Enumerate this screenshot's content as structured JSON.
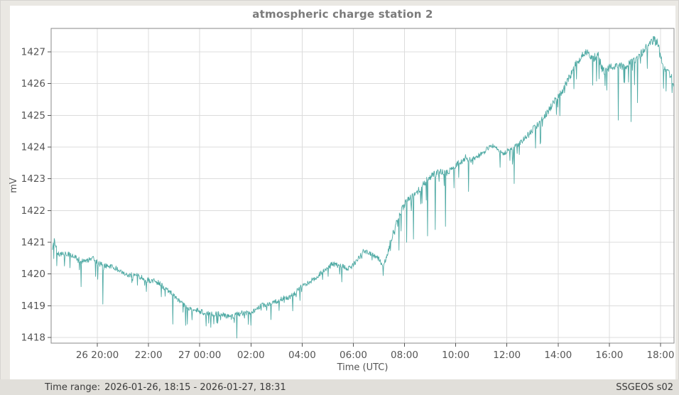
{
  "page": {
    "background": "#eae8e3",
    "panel_background": "#ffffff"
  },
  "footer": {
    "time_range_label": "Time range:",
    "time_range_value": "2026-01-26, 18:15 - 2026-01-27, 18:31",
    "source": "SSGEOS s02"
  },
  "chart_data": {
    "type": "line",
    "title": "atmospheric charge station 2",
    "xlabel": "Time (UTC)",
    "ylabel": "mV",
    "legend": "none",
    "grid": true,
    "line_color": "#4faaa4",
    "grid_color": "#dcdcdc",
    "axis_color": "#8a8a8a",
    "tick_color": "#555555",
    "tick_text_color": "#555555",
    "x_domain_hours": [
      -5.803,
      18.527
    ],
    "y_domain": [
      1417.82,
      1427.74
    ],
    "x_ticks": [
      {
        "t": -4,
        "label": "26 20:00"
      },
      {
        "t": -2,
        "label": "22:00"
      },
      {
        "t": 0,
        "label": "27 00:00"
      },
      {
        "t": 2,
        "label": "02:00"
      },
      {
        "t": 4,
        "label": "04:00"
      },
      {
        "t": 6,
        "label": "06:00"
      },
      {
        "t": 8,
        "label": "08:00"
      },
      {
        "t": 10,
        "label": "10:00"
      },
      {
        "t": 12,
        "label": "12:00"
      },
      {
        "t": 14,
        "label": "14:00"
      },
      {
        "t": 16,
        "label": "16:00"
      },
      {
        "t": 18,
        "label": "18:00"
      }
    ],
    "y_ticks": [
      1418,
      1419,
      1420,
      1421,
      1422,
      1423,
      1424,
      1425,
      1426,
      1427
    ],
    "series_start_hour": -5.75,
    "series_end_hour": 18.517,
    "samples_per_hour": 60,
    "series_anchors": [
      [
        -5.75,
        1420.75
      ],
      [
        -5.68,
        1421.0
      ],
      [
        -5.55,
        1420.6
      ],
      [
        -5.2,
        1420.62
      ],
      [
        -4.9,
        1420.55
      ],
      [
        -4.55,
        1420.45
      ],
      [
        -4.2,
        1420.5
      ],
      [
        -4.0,
        1420.33
      ],
      [
        -3.6,
        1420.22
      ],
      [
        -3.2,
        1420.1
      ],
      [
        -2.8,
        1420.0
      ],
      [
        -2.4,
        1419.97
      ],
      [
        -2.0,
        1419.82
      ],
      [
        -1.6,
        1419.65
      ],
      [
        -1.2,
        1419.45
      ],
      [
        -0.8,
        1419.15
      ],
      [
        -0.4,
        1418.95
      ],
      [
        0.0,
        1418.8
      ],
      [
        0.4,
        1418.72
      ],
      [
        0.9,
        1418.68
      ],
      [
        1.4,
        1418.73
      ],
      [
        1.9,
        1418.82
      ],
      [
        2.4,
        1418.92
      ],
      [
        2.9,
        1419.1
      ],
      [
        3.4,
        1419.28
      ],
      [
        3.9,
        1419.55
      ],
      [
        4.4,
        1419.8
      ],
      [
        4.9,
        1420.05
      ],
      [
        5.2,
        1420.38
      ],
      [
        5.45,
        1420.28
      ],
      [
        5.8,
        1420.18
      ],
      [
        6.1,
        1420.4
      ],
      [
        6.4,
        1420.65
      ],
      [
        6.75,
        1420.58
      ],
      [
        7.0,
        1420.5
      ],
      [
        7.17,
        1420.18
      ],
      [
        7.35,
        1420.7
      ],
      [
        7.6,
        1421.5
      ],
      [
        7.9,
        1422.1
      ],
      [
        8.2,
        1422.35
      ],
      [
        8.6,
        1422.65
      ],
      [
        9.0,
        1423.0
      ],
      [
        9.35,
        1423.3
      ],
      [
        9.65,
        1423.2
      ],
      [
        10.0,
        1423.45
      ],
      [
        10.35,
        1423.62
      ],
      [
        10.65,
        1423.55
      ],
      [
        11.0,
        1423.8
      ],
      [
        11.45,
        1424.05
      ],
      [
        11.85,
        1423.85
      ],
      [
        12.2,
        1423.9
      ],
      [
        12.55,
        1424.15
      ],
      [
        13.0,
        1424.5
      ],
      [
        13.5,
        1425.05
      ],
      [
        14.0,
        1425.6
      ],
      [
        14.5,
        1426.25
      ],
      [
        14.95,
        1426.9
      ],
      [
        15.15,
        1427.05
      ],
      [
        15.35,
        1426.75
      ],
      [
        15.55,
        1426.95
      ],
      [
        15.75,
        1426.45
      ],
      [
        16.0,
        1426.55
      ],
      [
        16.4,
        1426.5
      ],
      [
        16.8,
        1426.6
      ],
      [
        17.1,
        1426.75
      ],
      [
        17.4,
        1427.15
      ],
      [
        17.75,
        1427.45
      ],
      [
        17.95,
        1427.2
      ],
      [
        18.1,
        1426.55
      ],
      [
        18.3,
        1426.45
      ],
      [
        18.517,
        1426.0
      ]
    ],
    "spikes": [
      [
        -4.63,
        1419.6
      ],
      [
        -3.78,
        1419.05
      ],
      [
        -1.05,
        1418.42
      ],
      [
        -0.55,
        1418.38
      ],
      [
        0.35,
        1418.45
      ],
      [
        1.45,
        1417.98
      ],
      [
        5.55,
        1419.75
      ],
      [
        7.17,
        1419.95
      ],
      [
        7.78,
        1420.75
      ],
      [
        8.08,
        1421.0
      ],
      [
        8.35,
        1421.1
      ],
      [
        8.9,
        1421.2
      ],
      [
        9.2,
        1421.4
      ],
      [
        9.6,
        1421.5
      ],
      [
        10.5,
        1422.6
      ],
      [
        12.28,
        1422.85
      ],
      [
        13.3,
        1424.1
      ],
      [
        15.35,
        1425.95
      ],
      [
        16.35,
        1424.85
      ],
      [
        16.85,
        1424.8
      ],
      [
        17.1,
        1425.4
      ],
      [
        18.12,
        1425.85
      ]
    ],
    "noise": {
      "base_amplitude": 0.085,
      "busy_amplitude": 0.115,
      "downspike_probability": 0.07,
      "downspike_depth": 0.45,
      "seed": 20260126
    }
  }
}
